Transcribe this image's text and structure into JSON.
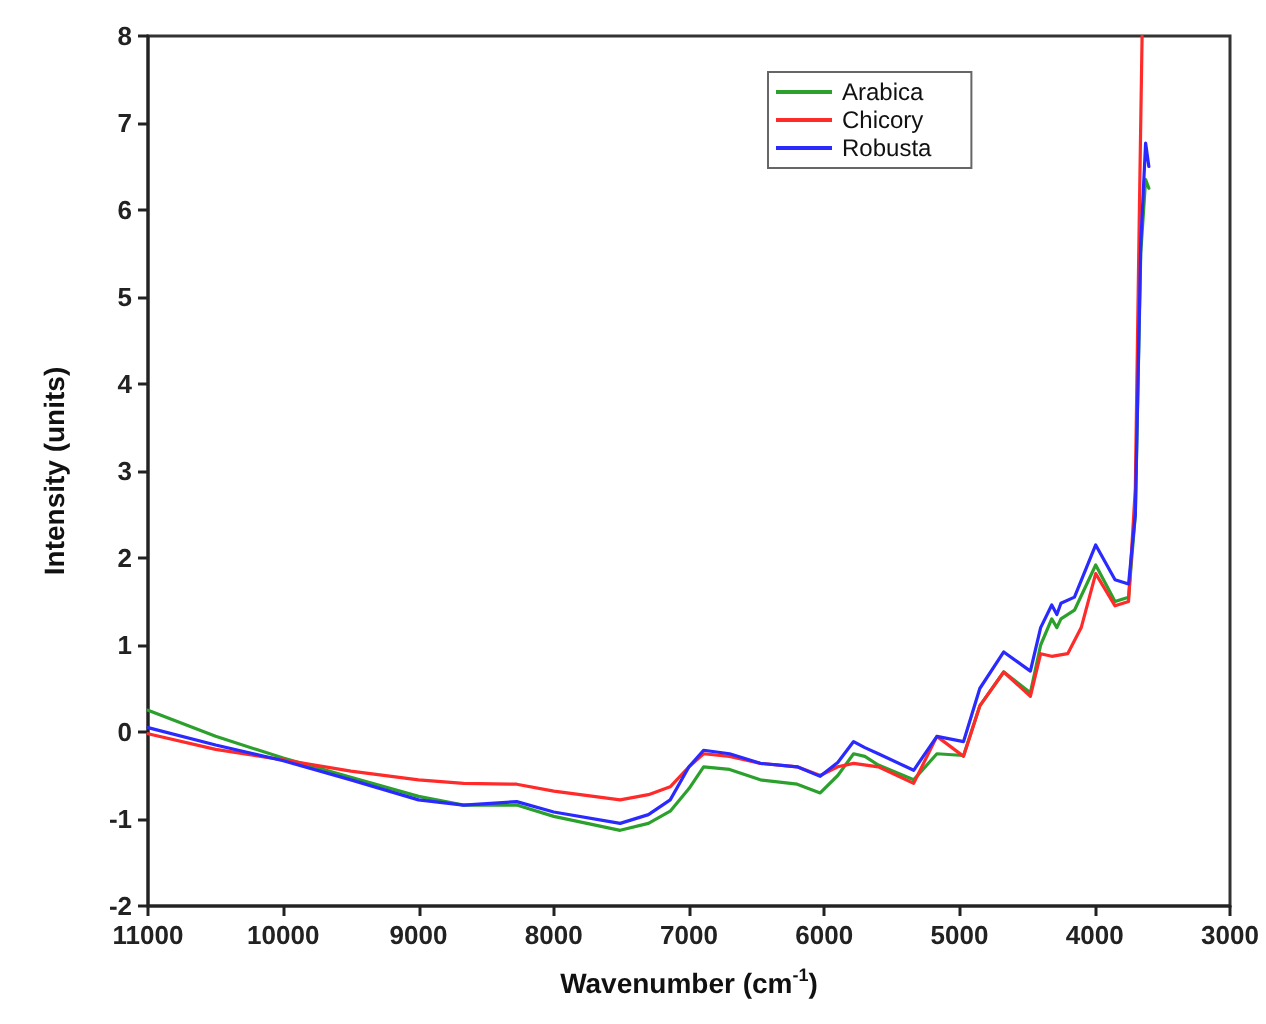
{
  "chart_data": {
    "type": "line",
    "xlabel": "Wavenumber (cm$^{-1}$)",
    "ylabel": "Intensity (units)",
    "xlim": [
      11000,
      3000
    ],
    "xticks": [
      11000,
      10000,
      9000,
      8000,
      7000,
      6000,
      5000,
      4000,
      3000
    ],
    "ylim": [
      -2,
      8
    ],
    "yticks": [
      -2,
      -1,
      0,
      1,
      2,
      3,
      4,
      5,
      6,
      7,
      8
    ],
    "legend": "top right",
    "grid": false,
    "marker": "none",
    "line_style": "solid",
    "series": [
      {
        "name": "Arabica",
        "color": "#2ca02c",
        "x": [
          11000,
          10500,
          10000,
          9500,
          9000,
          8667,
          8274,
          8000,
          7509,
          7300,
          7139,
          7000,
          6892,
          6700,
          6473,
          6200,
          6030,
          5900,
          5783,
          5700,
          5600,
          5339,
          5167,
          4970,
          4850,
          4673,
          4476,
          4400,
          4318,
          4280,
          4250,
          4150,
          3993,
          3850,
          3750,
          3700,
          3660,
          3624,
          3600
        ],
        "values": [
          0.25,
          -0.05,
          -0.3,
          -0.52,
          -0.74,
          -0.84,
          -0.84,
          -0.97,
          -1.13,
          -1.05,
          -0.91,
          -0.65,
          -0.4,
          -0.43,
          -0.55,
          -0.6,
          -0.7,
          -0.5,
          -0.25,
          -0.28,
          -0.38,
          -0.55,
          -0.25,
          -0.27,
          0.3,
          0.69,
          0.45,
          1.0,
          1.3,
          1.2,
          1.3,
          1.4,
          1.92,
          1.5,
          1.55,
          2.5,
          5.5,
          6.35,
          6.25
        ]
      },
      {
        "name": "Chicory",
        "color": "#ff2a2a",
        "x": [
          11000,
          10500,
          10000,
          9500,
          9000,
          8667,
          8274,
          8000,
          7509,
          7300,
          7139,
          7000,
          6892,
          6700,
          6473,
          6200,
          6030,
          5900,
          5783,
          5600,
          5339,
          5167,
          4970,
          4850,
          4673,
          4476,
          4400,
          4318,
          4200,
          4100,
          3993,
          3850,
          3750,
          3700,
          3670,
          3650
        ],
        "values": [
          -0.02,
          -0.2,
          -0.32,
          -0.45,
          -0.55,
          -0.59,
          -0.6,
          -0.68,
          -0.78,
          -0.72,
          -0.63,
          -0.4,
          -0.25,
          -0.28,
          -0.36,
          -0.4,
          -0.5,
          -0.4,
          -0.36,
          -0.4,
          -0.59,
          -0.05,
          -0.28,
          0.3,
          0.69,
          0.41,
          0.9,
          0.87,
          0.9,
          1.2,
          1.82,
          1.45,
          1.5,
          2.8,
          6,
          8
        ]
      },
      {
        "name": "Robusta",
        "color": "#2a2aff",
        "x": [
          11000,
          10500,
          10000,
          9500,
          9000,
          8667,
          8274,
          8000,
          7509,
          7300,
          7139,
          7000,
          6892,
          6700,
          6473,
          6200,
          6030,
          5900,
          5783,
          5700,
          5600,
          5339,
          5167,
          4970,
          4850,
          4673,
          4476,
          4400,
          4318,
          4280,
          4250,
          4150,
          3993,
          3850,
          3750,
          3700,
          3660,
          3624,
          3600
        ],
        "values": [
          0.05,
          -0.15,
          -0.33,
          -0.55,
          -0.78,
          -0.84,
          -0.8,
          -0.92,
          -1.05,
          -0.95,
          -0.78,
          -0.4,
          -0.21,
          -0.25,
          -0.36,
          -0.4,
          -0.51,
          -0.35,
          -0.11,
          -0.18,
          -0.25,
          -0.44,
          -0.05,
          -0.11,
          0.5,
          0.92,
          0.7,
          1.2,
          1.46,
          1.35,
          1.48,
          1.55,
          2.15,
          1.75,
          1.7,
          2.5,
          5.6,
          6.77,
          6.5
        ]
      }
    ]
  }
}
